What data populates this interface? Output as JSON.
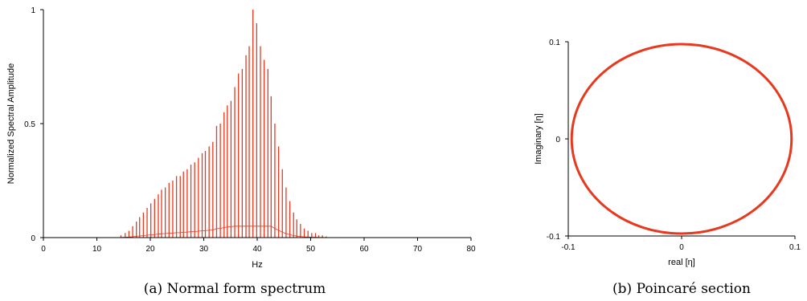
{
  "captions": {
    "a": "(a) Normal form spectrum",
    "b": "(b) Poincaré section"
  },
  "chart_data": [
    {
      "type": "bar",
      "xlabel": "Hz",
      "ylabel": "Normalized Spectral Amplitude",
      "xlim": [
        0,
        80
      ],
      "ylim": [
        0,
        1
      ],
      "xticks": [
        "0",
        "10",
        "20",
        "30",
        "40",
        "50",
        "60",
        "70",
        "80"
      ],
      "yticks": [
        "0",
        "0.5",
        "1"
      ],
      "color": "#e8381e",
      "x": [
        14.5,
        15.3,
        16,
        16.7,
        17.4,
        18,
        18.7,
        19.4,
        20.1,
        20.8,
        21.5,
        22.1,
        22.8,
        23.5,
        24.2,
        24.9,
        25.6,
        26.2,
        26.9,
        27.6,
        28.3,
        29,
        29.7,
        30.3,
        31,
        31.7,
        32.4,
        33.1,
        33.8,
        34.4,
        35.1,
        35.8,
        36.5,
        37.2,
        37.9,
        38.5,
        39.2,
        39.9,
        40.6,
        41.3,
        42,
        42.6,
        43.3,
        44,
        44.7,
        45.4,
        46.1,
        46.8,
        47.4,
        48.1,
        48.8,
        49.5,
        50.2,
        50.9,
        51.5,
        52.2,
        52.9
      ],
      "values": [
        0.01,
        0.02,
        0.03,
        0.05,
        0.07,
        0.09,
        0.11,
        0.13,
        0.15,
        0.17,
        0.19,
        0.21,
        0.22,
        0.24,
        0.25,
        0.27,
        0.27,
        0.29,
        0.3,
        0.32,
        0.33,
        0.35,
        0.37,
        0.38,
        0.4,
        0.42,
        0.49,
        0.5,
        0.55,
        0.58,
        0.6,
        0.66,
        0.72,
        0.74,
        0.8,
        0.84,
        1.0,
        0.94,
        0.84,
        0.78,
        0.74,
        0.62,
        0.5,
        0.4,
        0.3,
        0.22,
        0.16,
        0.11,
        0.08,
        0.06,
        0.04,
        0.03,
        0.02,
        0.02,
        0.01,
        0.01,
        0.005
      ],
      "series_color_note": "red"
    },
    {
      "type": "scatter",
      "xlabel": "real [η]",
      "ylabel": "Imaginary [η]",
      "xlim": [
        -0.1,
        0.1
      ],
      "ylim": [
        -0.1,
        0.1
      ],
      "xticks": [
        "-0.1",
        "0",
        "0.1"
      ],
      "yticks": [
        "-0.1",
        "0",
        "0.1"
      ],
      "color": "#e8381e",
      "shape": "closed orbit (ellipse)",
      "center": [
        0,
        0
      ],
      "radius_x": 0.097,
      "radius_y": 0.0975
    }
  ]
}
